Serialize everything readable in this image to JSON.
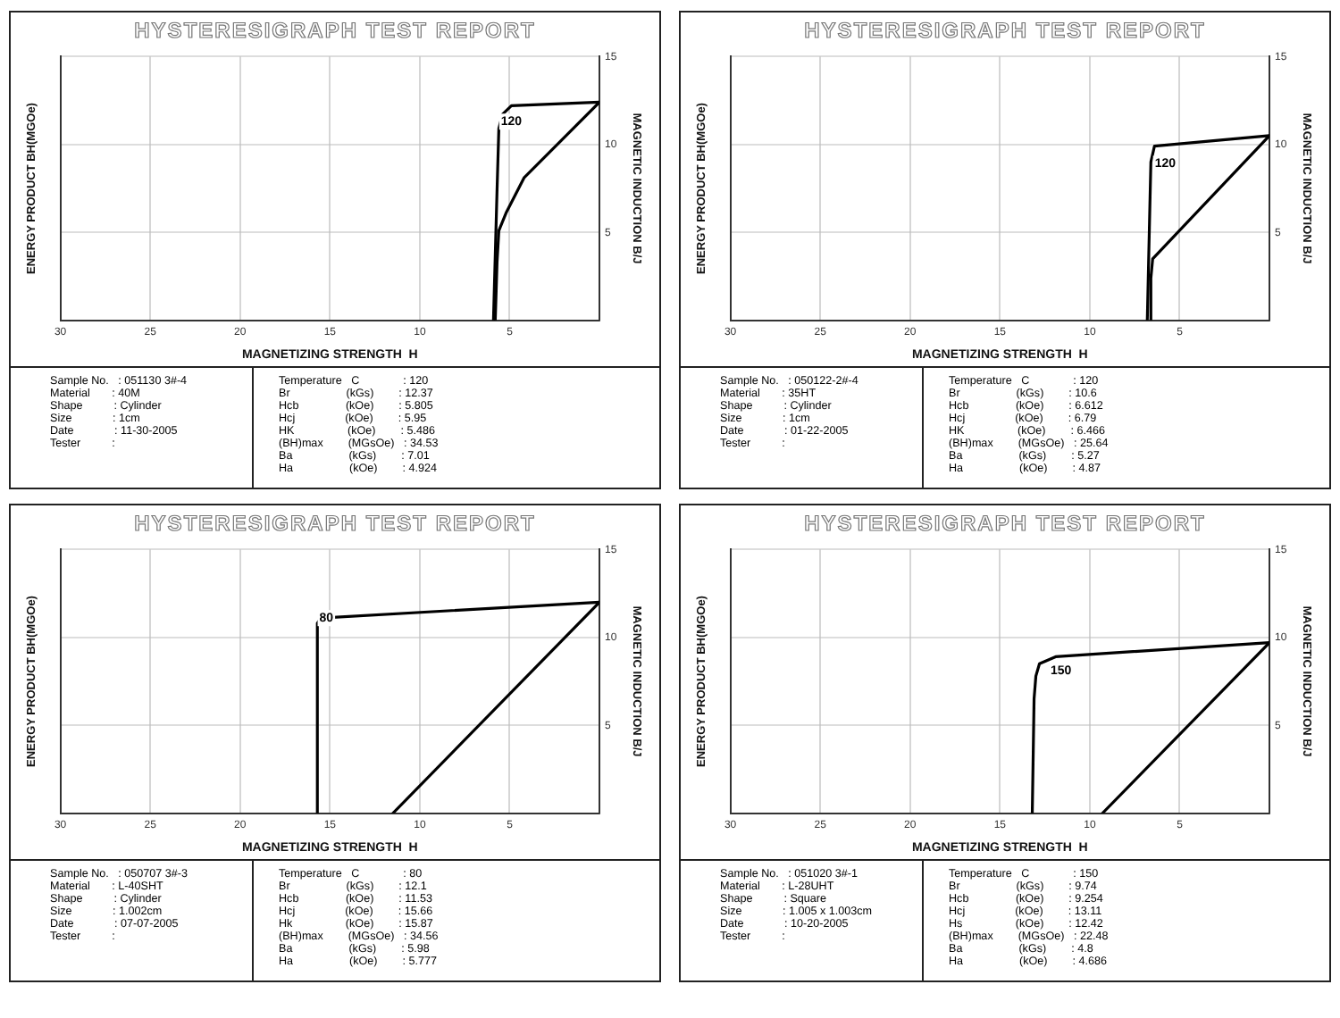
{
  "chart_data": [
    {
      "type": "line",
      "title": "HYSTERESIGRAPH TEST REPORT",
      "xlabel": "MAGNETIZING STRENGTH  H",
      "ylabel": "MAGNETIC INDUCTION B/J",
      "y2label": "ENERGY PRODUCT BH(MGOe)",
      "xlim": [
        30,
        0
      ],
      "xticks": [
        30,
        25,
        20,
        15,
        10,
        5
      ],
      "ylim": [
        0,
        15
      ],
      "yticks": [
        5,
        10,
        15
      ],
      "grid": true,
      "marker": "none",
      "line_style": "solid",
      "series": [
        {
          "color": "#000000",
          "x": [
            0,
            4.9,
            5.4,
            5.6,
            5.7,
            5.9
          ],
          "values": [
            12.4,
            12.2,
            11.7,
            10.9,
            7.4,
            0
          ]
        },
        {
          "color": "#000000",
          "x": [
            0,
            4.2,
            5.2,
            5.6,
            5.7,
            5.8
          ],
          "values": [
            12.4,
            8.1,
            6.1,
            5.1,
            3.3,
            0
          ]
        }
      ],
      "annotations": [
        {
          "text": "120",
          "x": 4.9,
          "y": 11.8
        },
        "Sample No.   : 051130 3#-4\nMaterial       : 40M\nShape          : Cylinder\nSize             : 1cm\nDate             : 11-30-2005\nTester          :",
        "Temperature   C              : 120\nBr                  (kGs)        : 12.37\nHcb               (kOe)        : 5.805\nHcj                (kOe)        : 5.95\nHK                 (kOe)        : 5.486\n(BH)max        (MGsOe)   : 34.53\nBa                  (kGs)        : 7.01\nHa                  (kOe)        : 4.924"
      ]
    },
    {
      "type": "line",
      "title": "HYSTERESIGRAPH TEST REPORT",
      "xlabel": "MAGNETIZING STRENGTH  H",
      "ylabel": "MAGNETIC INDUCTION B/J",
      "y2label": "ENERGY PRODUCT BH(MGOe)",
      "xlim": [
        30,
        0
      ],
      "xticks": [
        30,
        25,
        20,
        15,
        10,
        5
      ],
      "ylim": [
        0,
        15
      ],
      "yticks": [
        5,
        10,
        15
      ],
      "grid": true,
      "marker": "none",
      "line_style": "solid",
      "series": [
        {
          "color": "#000000",
          "x": [
            0,
            6.4,
            6.6,
            6.8
          ],
          "values": [
            10.5,
            9.9,
            9.0,
            0
          ]
        },
        {
          "color": "#000000",
          "x": [
            0,
            6.5,
            6.6,
            6.6
          ],
          "values": [
            10.5,
            3.5,
            2.4,
            0
          ]
        }
      ],
      "annotations": [
        {
          "text": "120",
          "x": 5.8,
          "y": 9.4
        },
        "Sample No.   : 050122-2#-4\nMaterial       : 35HT\nShape          : Cylinder\nSize             : 1cm\nDate             : 01-22-2005\nTester          :",
        "Temperature   C              : 120\nBr                  (kGs)        : 10.6\nHcb               (kOe)        : 6.612\nHcj                (kOe)        : 6.79\nHK                 (kOe)        : 6.466\n(BH)max        (MGsOe)   : 25.64\nBa                  (kGs)        : 5.27\nHa                  (kOe)        : 4.87"
      ]
    },
    {
      "type": "line",
      "title": "HYSTERESIGRAPH TEST REPORT",
      "xlabel": "MAGNETIZING STRENGTH  H",
      "ylabel": "MAGNETIC INDUCTION B/J",
      "y2label": "ENERGY PRODUCT BH(MGOe)",
      "xlim": [
        30,
        0
      ],
      "xticks": [
        30,
        25,
        20,
        15,
        10,
        5
      ],
      "ylim": [
        0,
        15
      ],
      "yticks": [
        5,
        10,
        15
      ],
      "grid": true,
      "marker": "none",
      "line_style": "solid",
      "series": [
        {
          "color": "#000000",
          "x": [
            0,
            15.5,
            15.7,
            15.7
          ],
          "values": [
            12.0,
            11.1,
            10.8,
            0
          ]
        },
        {
          "color": "#000000",
          "x": [
            0,
            11.5
          ],
          "values": [
            12.0,
            0
          ]
        }
      ],
      "annotations": [
        {
          "text": "80",
          "x": 15.2,
          "y": 11.6
        },
        "Sample No.   : 050707 3#-3\nMaterial       : L-40SHT\nShape          : Cylinder\nSize             : 1.002cm\nDate             : 07-07-2005\nTester          :",
        "Temperature   C              : 80\nBr                  (kGs)        : 12.1\nHcb               (kOe)        : 11.53\nHcj                (kOe)        : 15.66\nHk                 (kOe)        : 15.87\n(BH)max        (MGsOe)   : 34.56\nBa                  (kGs)        : 5.98\nHa                  (kOe)        : 5.777"
      ]
    },
    {
      "type": "line",
      "title": "HYSTERESIGRAPH TEST REPORT",
      "xlabel": "MAGNETIZING STRENGTH  H",
      "ylabel": "MAGNETIC INDUCTION B/J",
      "y2label": "ENERGY PRODUCT BH(MGOe)",
      "xlim": [
        30,
        0
      ],
      "xticks": [
        30,
        25,
        20,
        15,
        10,
        5
      ],
      "ylim": [
        0,
        15
      ],
      "yticks": [
        5,
        10,
        15
      ],
      "grid": true,
      "marker": "none",
      "line_style": "solid",
      "series": [
        {
          "color": "#000000",
          "x": [
            0,
            11.9,
            12.8,
            13.0,
            13.1,
            13.2
          ],
          "values": [
            9.7,
            8.9,
            8.5,
            7.8,
            6.5,
            0
          ]
        },
        {
          "color": "#000000",
          "x": [
            0,
            9.3
          ],
          "values": [
            9.7,
            0
          ]
        }
      ],
      "annotations": [
        {
          "text": "150",
          "x": 11.6,
          "y": 8.6
        },
        "Sample No.   : 051020 3#-1\nMaterial       : L-28UHT\nShape          : Square\nSize             : 1.005 x 1.003cm\nDate             : 10-20-2005\nTester          :",
        "Temperature   C              : 150\nBr                  (kGs)        : 9.74\nHcb               (kOe)        : 9.254\nHcj                (kOe)        : 13.11\nHs                 (kOe)        : 12.42\n(BH)max        (MGsOe)   : 22.48\nBa                  (kGs)        : 4.8\nHa                  (kOe)        : 4.686"
      ]
    }
  ]
}
